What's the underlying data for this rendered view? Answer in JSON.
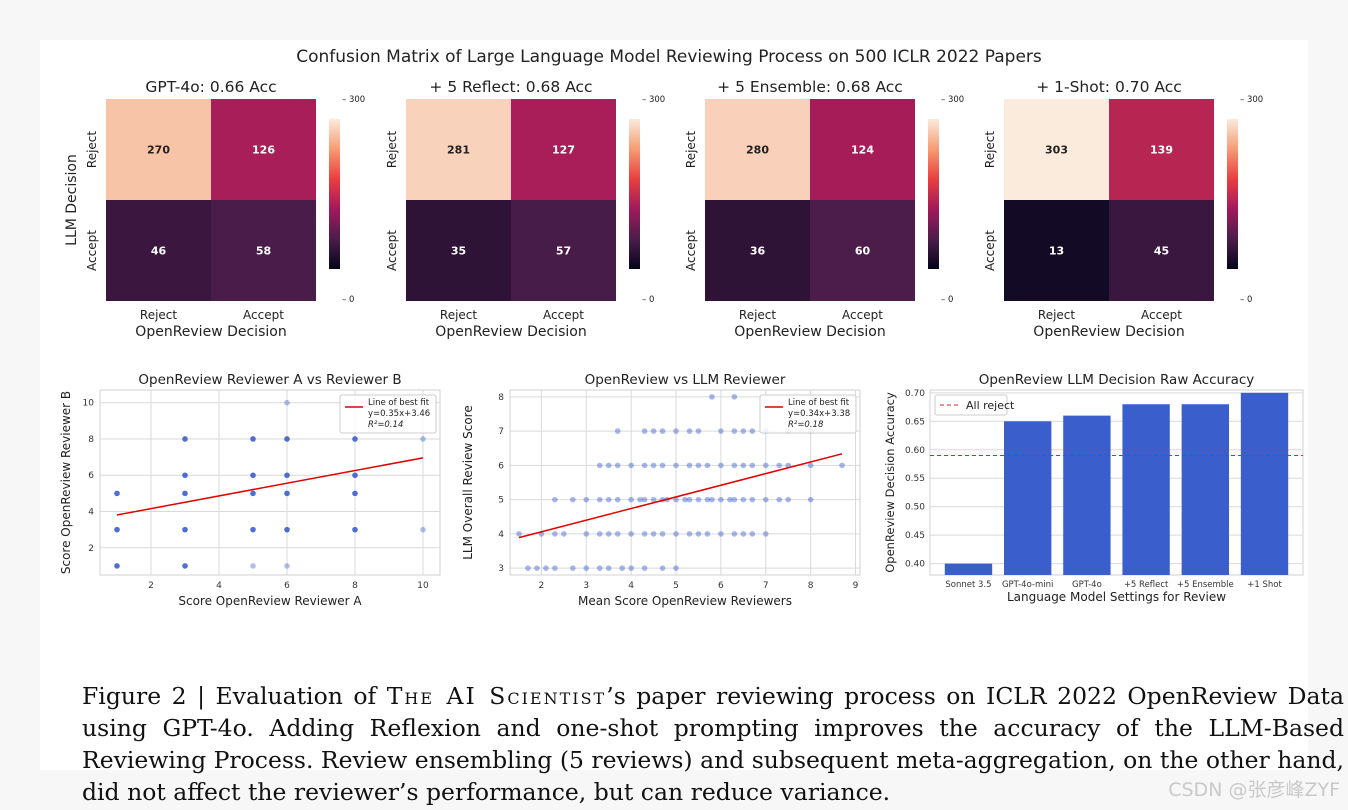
{
  "figure_title": "Confusion Matrix of Large Language Model Reviewing Process on 500 ICLR 2022 Papers",
  "chart_data": [
    {
      "type": "heatmap",
      "title": "GPT-4o: 0.66 Acc",
      "xlabel": "OpenReview Decision",
      "ylabel": "LLM Decision",
      "x_categories": [
        "Reject",
        "Accept"
      ],
      "y_categories": [
        "Reject",
        "Accept"
      ],
      "values": [
        [
          270,
          126
        ],
        [
          46,
          58
        ]
      ],
      "colorbar": {
        "min": 0,
        "max": 300,
        "ticks": [
          "300",
          "0"
        ]
      }
    },
    {
      "type": "heatmap",
      "title": "+ 5 Reflect: 0.68 Acc",
      "xlabel": "OpenReview Decision",
      "ylabel": "",
      "x_categories": [
        "Reject",
        "Accept"
      ],
      "y_categories": [
        "Reject",
        "Accept"
      ],
      "values": [
        [
          281,
          127
        ],
        [
          35,
          57
        ]
      ],
      "colorbar": {
        "min": 0,
        "max": 300,
        "ticks": [
          "300",
          "0"
        ]
      }
    },
    {
      "type": "heatmap",
      "title": "+ 5 Ensemble: 0.68 Acc",
      "xlabel": "OpenReview Decision",
      "ylabel": "",
      "x_categories": [
        "Reject",
        "Accept"
      ],
      "y_categories": [
        "Reject",
        "Accept"
      ],
      "values": [
        [
          280,
          124
        ],
        [
          36,
          60
        ]
      ],
      "colorbar": {
        "min": 0,
        "max": 300,
        "ticks": [
          "300",
          "0"
        ]
      }
    },
    {
      "type": "heatmap",
      "title": "+ 1-Shot: 0.70 Acc",
      "xlabel": "OpenReview Decision",
      "ylabel": "",
      "x_categories": [
        "Reject",
        "Accept"
      ],
      "y_categories": [
        "Reject",
        "Accept"
      ],
      "values": [
        [
          303,
          139
        ],
        [
          13,
          45
        ]
      ],
      "colorbar": {
        "min": 0,
        "max": 300,
        "ticks": [
          "300",
          "0"
        ]
      }
    },
    {
      "type": "scatter",
      "title": "OpenReview Reviewer A vs Reviewer B",
      "xlabel": "Score OpenReview Reviewer A",
      "ylabel": "Score OpenReview Reviewer B",
      "xlim": [
        0.5,
        10.5
      ],
      "ylim": [
        0.5,
        10.7
      ],
      "xticks": [
        "2",
        "4",
        "6",
        "8",
        "10"
      ],
      "yticks": [
        "2",
        "4",
        "6",
        "8",
        "10"
      ],
      "grid": true,
      "points": [
        [
          1,
          5
        ],
        [
          1,
          3
        ],
        [
          1,
          1
        ],
        [
          3,
          8
        ],
        [
          3,
          6
        ],
        [
          3,
          5
        ],
        [
          3,
          3
        ],
        [
          3,
          1
        ],
        [
          5,
          8
        ],
        [
          5,
          6
        ],
        [
          5,
          5
        ],
        [
          5,
          3
        ],
        [
          5,
          1
        ],
        [
          6,
          10
        ],
        [
          6,
          8
        ],
        [
          6,
          6
        ],
        [
          6,
          5
        ],
        [
          6,
          3
        ],
        [
          6,
          1
        ],
        [
          8,
          8
        ],
        [
          8,
          6
        ],
        [
          8,
          5
        ],
        [
          8,
          3
        ],
        [
          10,
          8
        ],
        [
          10,
          3
        ]
      ],
      "fit": {
        "slope": 0.35,
        "intercept": 3.46,
        "x_range": [
          1,
          10
        ]
      },
      "legend": {
        "position": "upper right",
        "title": "Line of best fit",
        "lines": [
          "y=0.35x+3.46",
          "R²=0.14"
        ]
      }
    },
    {
      "type": "scatter",
      "title": "OpenReview vs LLM Reviewer",
      "xlabel": "Mean Score OpenReview Reviewers",
      "ylabel": "LLM Overall Review Score",
      "xlim": [
        1.3,
        9.1
      ],
      "ylim": [
        2.8,
        8.2
      ],
      "xticks": [
        "2",
        "3",
        "4",
        "5",
        "6",
        "7",
        "8",
        "9"
      ],
      "yticks": [
        "3",
        "4",
        "5",
        "6",
        "7",
        "8"
      ],
      "grid": true,
      "points": [
        [
          1.7,
          3
        ],
        [
          1.9,
          3
        ],
        [
          2.1,
          3
        ],
        [
          2.3,
          3
        ],
        [
          2.7,
          3
        ],
        [
          3,
          3
        ],
        [
          3.3,
          3
        ],
        [
          3.5,
          3
        ],
        [
          3.8,
          3
        ],
        [
          4,
          3
        ],
        [
          4.3,
          3
        ],
        [
          4.7,
          3
        ],
        [
          5,
          3
        ],
        [
          1.5,
          4
        ],
        [
          2,
          4
        ],
        [
          2.3,
          4
        ],
        [
          2.5,
          4
        ],
        [
          3,
          4
        ],
        [
          3.3,
          4
        ],
        [
          3.5,
          4
        ],
        [
          3.7,
          4
        ],
        [
          4,
          4
        ],
        [
          4.3,
          4
        ],
        [
          4.5,
          4
        ],
        [
          4.7,
          4
        ],
        [
          5,
          4
        ],
        [
          5.3,
          4
        ],
        [
          5.5,
          4
        ],
        [
          5.7,
          4
        ],
        [
          6,
          4
        ],
        [
          6.3,
          4
        ],
        [
          6.5,
          4
        ],
        [
          6.7,
          4
        ],
        [
          7,
          4
        ],
        [
          2.3,
          5
        ],
        [
          2.7,
          5
        ],
        [
          3,
          5
        ],
        [
          3.3,
          5
        ],
        [
          3.5,
          5
        ],
        [
          3.7,
          5
        ],
        [
          4,
          5
        ],
        [
          4.2,
          5
        ],
        [
          4.3,
          5
        ],
        [
          4.5,
          5
        ],
        [
          4.7,
          5
        ],
        [
          4.8,
          5
        ],
        [
          5,
          5
        ],
        [
          5.2,
          5
        ],
        [
          5.3,
          5
        ],
        [
          5.5,
          5
        ],
        [
          5.7,
          5
        ],
        [
          5.8,
          5
        ],
        [
          6,
          5
        ],
        [
          6.2,
          5
        ],
        [
          6.3,
          5
        ],
        [
          6.5,
          5
        ],
        [
          6.7,
          5
        ],
        [
          7,
          5
        ],
        [
          7.3,
          5
        ],
        [
          7.5,
          5
        ],
        [
          8,
          5
        ],
        [
          3.3,
          6
        ],
        [
          3.5,
          6
        ],
        [
          3.7,
          6
        ],
        [
          4,
          6
        ],
        [
          4.3,
          6
        ],
        [
          4.5,
          6
        ],
        [
          4.7,
          6
        ],
        [
          5,
          6
        ],
        [
          5.3,
          6
        ],
        [
          5.5,
          6
        ],
        [
          5.7,
          6
        ],
        [
          6,
          6
        ],
        [
          6.3,
          6
        ],
        [
          6.5,
          6
        ],
        [
          6.7,
          6
        ],
        [
          7,
          6
        ],
        [
          7.3,
          6
        ],
        [
          7.5,
          6
        ],
        [
          8,
          6
        ],
        [
          8.7,
          6
        ],
        [
          3.7,
          7
        ],
        [
          4.3,
          7
        ],
        [
          4.5,
          7
        ],
        [
          4.7,
          7
        ],
        [
          5,
          7
        ],
        [
          5.3,
          7
        ],
        [
          5.5,
          7
        ],
        [
          6,
          7
        ],
        [
          6.3,
          7
        ],
        [
          6.5,
          7
        ],
        [
          6.7,
          7
        ],
        [
          7,
          7
        ],
        [
          7.5,
          7
        ],
        [
          8,
          7
        ],
        [
          5.8,
          8
        ],
        [
          6.3,
          8
        ]
      ],
      "fit": {
        "slope": 0.34,
        "intercept": 3.38,
        "x_range": [
          1.5,
          8.7
        ]
      },
      "legend": {
        "position": "upper right",
        "title": "Line of best fit",
        "lines": [
          "y=0.34x+3.38",
          "R²=0.18"
        ]
      }
    },
    {
      "type": "bar",
      "title": "OpenReview LLM Decision Raw Accuracy",
      "xlabel": "Language Model Settings for Review",
      "ylabel": "OpenReview Decision Accuracy",
      "categories": [
        "Sonnet 3.5",
        "GPT-4o-mini",
        "GPT-4o",
        "+5 Reflect",
        "+5 Ensemble",
        "+1 Shot"
      ],
      "values": [
        0.4,
        0.65,
        0.66,
        0.68,
        0.68,
        0.7
      ],
      "ylim": [
        0.38,
        0.705
      ],
      "yticks": [
        "0.40",
        "0.45",
        "0.50",
        "0.55",
        "0.60",
        "0.65",
        "0.70"
      ],
      "grid": true,
      "reference_line": {
        "label": "All reject",
        "value": 0.59,
        "style": "dashed",
        "color": "#d62728"
      },
      "legend": {
        "position": "upper left"
      }
    }
  ],
  "colors": {
    "bar": "#3a5fcd",
    "scatter": "#3a5fcd",
    "fit_line": "#e00000",
    "reference_line": "#d62728",
    "heatmap_low": "#03051a",
    "heatmap_high": "#faebdd"
  },
  "caption": {
    "prefix": "Figure 2 | Evaluation of ",
    "name": "The AI Scientist",
    "rest": "’s paper reviewing process on ICLR 2022 OpenReview Data using GPT-4o. Adding Reflexion and one-shot prompting improves the accuracy of the LLM-Based Reviewing Process. Review ensembling (5 reviews) and subsequent meta-aggregation, on the other hand, did not affect the reviewer’s performance, but can reduce variance."
  },
  "watermark": "CSDN @张彦峰ZYF"
}
